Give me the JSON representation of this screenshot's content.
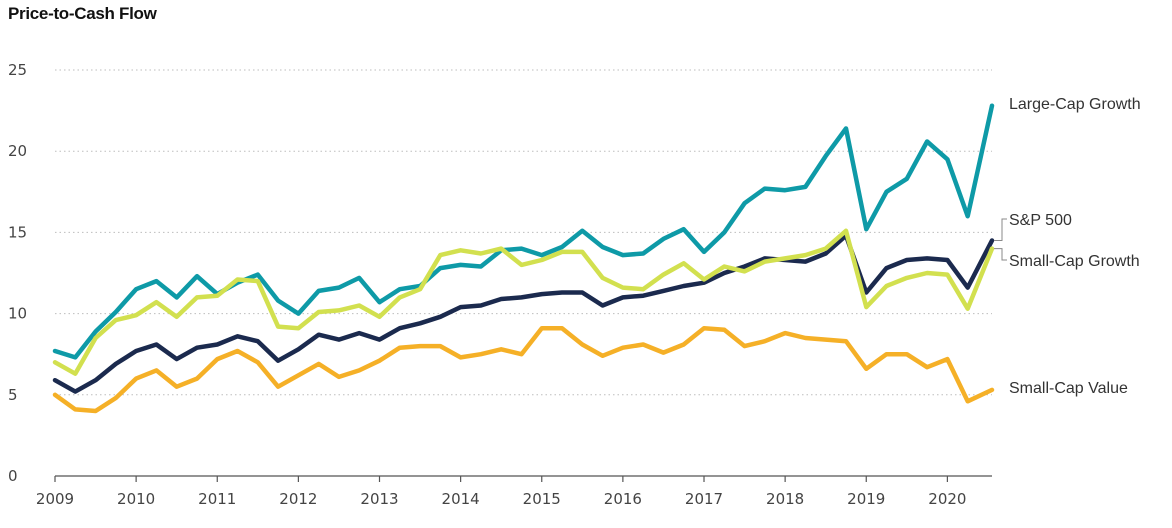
{
  "chart_data": {
    "type": "line",
    "title": "Price-to-Cash Flow",
    "xlabel": "",
    "ylabel": "",
    "xlim": [
      2009.0,
      2020.55
    ],
    "ylim": [
      0,
      25
    ],
    "y_ticks": [
      "0",
      "5",
      "10",
      "15",
      "20",
      "25"
    ],
    "x_ticks": [
      "2009",
      "2010",
      "2011",
      "2012",
      "2013",
      "2014",
      "2015",
      "2016",
      "2017",
      "2018",
      "2019",
      "2020"
    ],
    "grid": "horizontal",
    "legend": "inline-right",
    "x": [
      2009.0,
      2009.25,
      2009.5,
      2009.75,
      2010.0,
      2010.25,
      2010.5,
      2010.75,
      2011.0,
      2011.25,
      2011.5,
      2011.75,
      2012.0,
      2012.25,
      2012.5,
      2012.75,
      2013.0,
      2013.25,
      2013.5,
      2013.75,
      2014.0,
      2014.25,
      2014.5,
      2014.75,
      2015.0,
      2015.25,
      2015.5,
      2015.75,
      2016.0,
      2016.25,
      2016.5,
      2016.75,
      2017.0,
      2017.25,
      2017.5,
      2017.75,
      2018.0,
      2018.25,
      2018.5,
      2018.75,
      2019.0,
      2019.25,
      2019.5,
      2019.75,
      2020.0,
      2020.25,
      2020.55
    ],
    "series": [
      {
        "name": "Large-Cap Growth",
        "color": "#0e9aa7",
        "values": [
          7.7,
          7.3,
          8.9,
          10.1,
          11.5,
          12.0,
          11.0,
          12.3,
          11.2,
          11.9,
          12.4,
          10.8,
          10.0,
          11.4,
          11.6,
          12.2,
          10.7,
          11.5,
          11.7,
          12.8,
          13.0,
          12.9,
          13.9,
          14.0,
          13.6,
          14.1,
          15.1,
          14.1,
          13.6,
          13.7,
          14.6,
          15.2,
          13.8,
          15.0,
          16.8,
          17.7,
          17.6,
          17.8,
          19.7,
          21.4,
          15.2,
          17.5,
          18.3,
          20.6,
          19.5,
          16.0,
          22.8
        ]
      },
      {
        "name": "S&P 500",
        "color": "#1b2a4e",
        "values": [
          5.9,
          5.2,
          5.9,
          6.9,
          7.7,
          8.1,
          7.2,
          7.9,
          8.1,
          8.6,
          8.3,
          7.1,
          7.8,
          8.7,
          8.4,
          8.8,
          8.4,
          9.1,
          9.4,
          9.8,
          10.4,
          10.5,
          10.9,
          11.0,
          11.2,
          11.3,
          11.3,
          10.5,
          11.0,
          11.1,
          11.4,
          11.7,
          11.9,
          12.5,
          12.9,
          13.4,
          13.3,
          13.2,
          13.7,
          14.8,
          11.3,
          12.8,
          13.3,
          13.4,
          13.3,
          11.6,
          14.5
        ]
      },
      {
        "name": "Small-Cap Growth",
        "color": "#d2e04f",
        "values": [
          7.0,
          6.3,
          8.5,
          9.6,
          9.9,
          10.7,
          9.8,
          11.0,
          11.1,
          12.1,
          12.0,
          9.2,
          9.1,
          10.1,
          10.2,
          10.5,
          9.8,
          11.0,
          11.5,
          13.6,
          13.9,
          13.7,
          14.0,
          13.0,
          13.3,
          13.8,
          13.8,
          12.2,
          11.6,
          11.5,
          12.4,
          13.1,
          12.1,
          12.9,
          12.6,
          13.2,
          13.4,
          13.6,
          14.0,
          15.1,
          10.4,
          11.7,
          12.2,
          12.5,
          12.4,
          10.3,
          14.0
        ]
      },
      {
        "name": "Small-Cap Value",
        "color": "#f5b027",
        "values": [
          5.0,
          4.1,
          4.0,
          4.8,
          6.0,
          6.5,
          5.5,
          6.0,
          7.2,
          7.7,
          7.0,
          5.5,
          6.2,
          6.9,
          6.1,
          6.5,
          7.1,
          7.9,
          8.0,
          8.0,
          7.3,
          7.5,
          7.8,
          7.5,
          9.1,
          9.1,
          8.1,
          7.4,
          7.9,
          8.1,
          7.6,
          8.1,
          9.1,
          9.0,
          8.0,
          8.3,
          8.8,
          8.5,
          8.4,
          8.3,
          6.6,
          7.5,
          7.5,
          6.7,
          7.2,
          4.6,
          5.3
        ]
      }
    ]
  }
}
